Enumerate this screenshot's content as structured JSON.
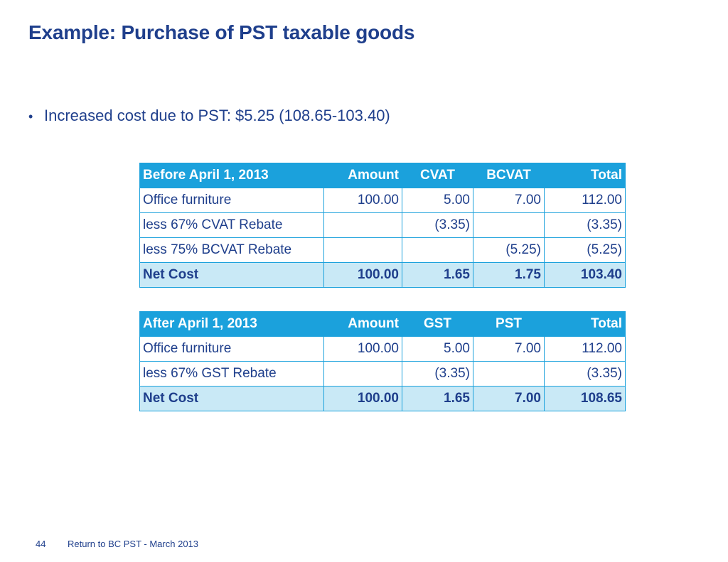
{
  "title": "Example: Purchase of PST taxable goods",
  "bullets": [
    "Increased cost due to PST: $5.25 (108.65-103.40)"
  ],
  "table_before": {
    "headers": [
      "Before April 1, 2013",
      "Amount",
      "CVAT",
      "BCVAT",
      "Total"
    ],
    "rows": [
      [
        "Office furniture",
        "100.00",
        "5.00",
        "7.00",
        "112.00"
      ],
      [
        "less 67% CVAT Rebate",
        "",
        "(3.35)",
        "",
        "(3.35)"
      ],
      [
        "less 75% BCVAT Rebate",
        "",
        "",
        "(5.25)",
        "(5.25)"
      ]
    ],
    "net": [
      "Net Cost",
      "100.00",
      "1.65",
      "1.75",
      "103.40"
    ]
  },
  "table_after": {
    "headers": [
      "After April 1, 2013",
      "Amount",
      "GST",
      "PST",
      "Total"
    ],
    "rows": [
      [
        "Office furniture",
        "100.00",
        "5.00",
        "7.00",
        "112.00"
      ],
      [
        "less 67% GST Rebate",
        "",
        "(3.35)",
        "",
        "(3.35)"
      ]
    ],
    "net": [
      "Net Cost",
      "100.00",
      "1.65",
      "7.00",
      "108.65"
    ]
  },
  "footer": {
    "page_number": "44",
    "text": "Return to BC PST - March 2013"
  },
  "colors": {
    "title": "#1f3f8c",
    "header_bg": "#1ba1dc",
    "net_row_bg": "#c9e9f6",
    "border": "#1ba1dc"
  }
}
